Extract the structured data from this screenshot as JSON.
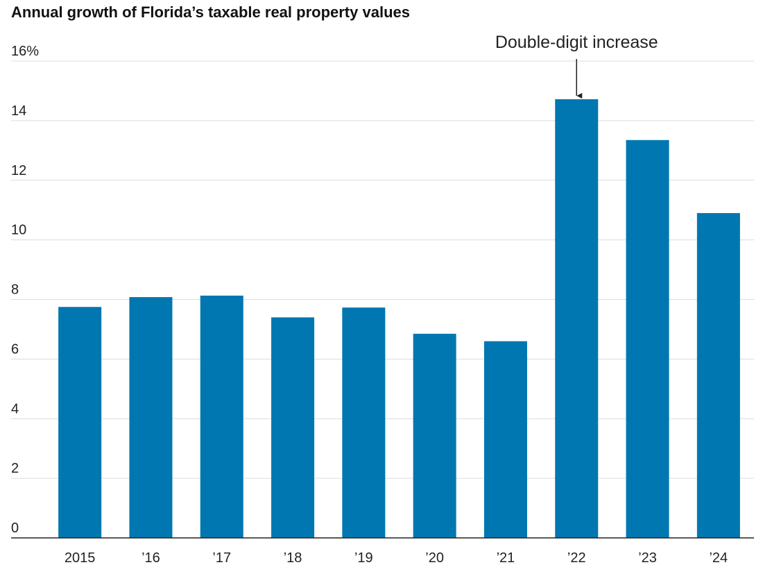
{
  "chart_data": {
    "type": "bar",
    "title": "Annual growth of Florida’s taxable real property values",
    "annotation": "Double-digit increase",
    "categories": [
      "2015",
      "’16",
      "’17",
      "’18",
      "’19",
      "’20",
      "’21",
      "’22",
      "’23",
      "’24"
    ],
    "values": [
      7.75,
      8.08,
      8.13,
      7.4,
      7.73,
      6.85,
      6.6,
      14.72,
      13.35,
      10.9
    ],
    "color": "#0077b0",
    "ylim": [
      0,
      16
    ],
    "yticks": [
      0,
      2,
      4,
      6,
      8,
      10,
      12,
      14,
      {
        "value": 16,
        "label": "16%"
      }
    ],
    "grid": true
  }
}
